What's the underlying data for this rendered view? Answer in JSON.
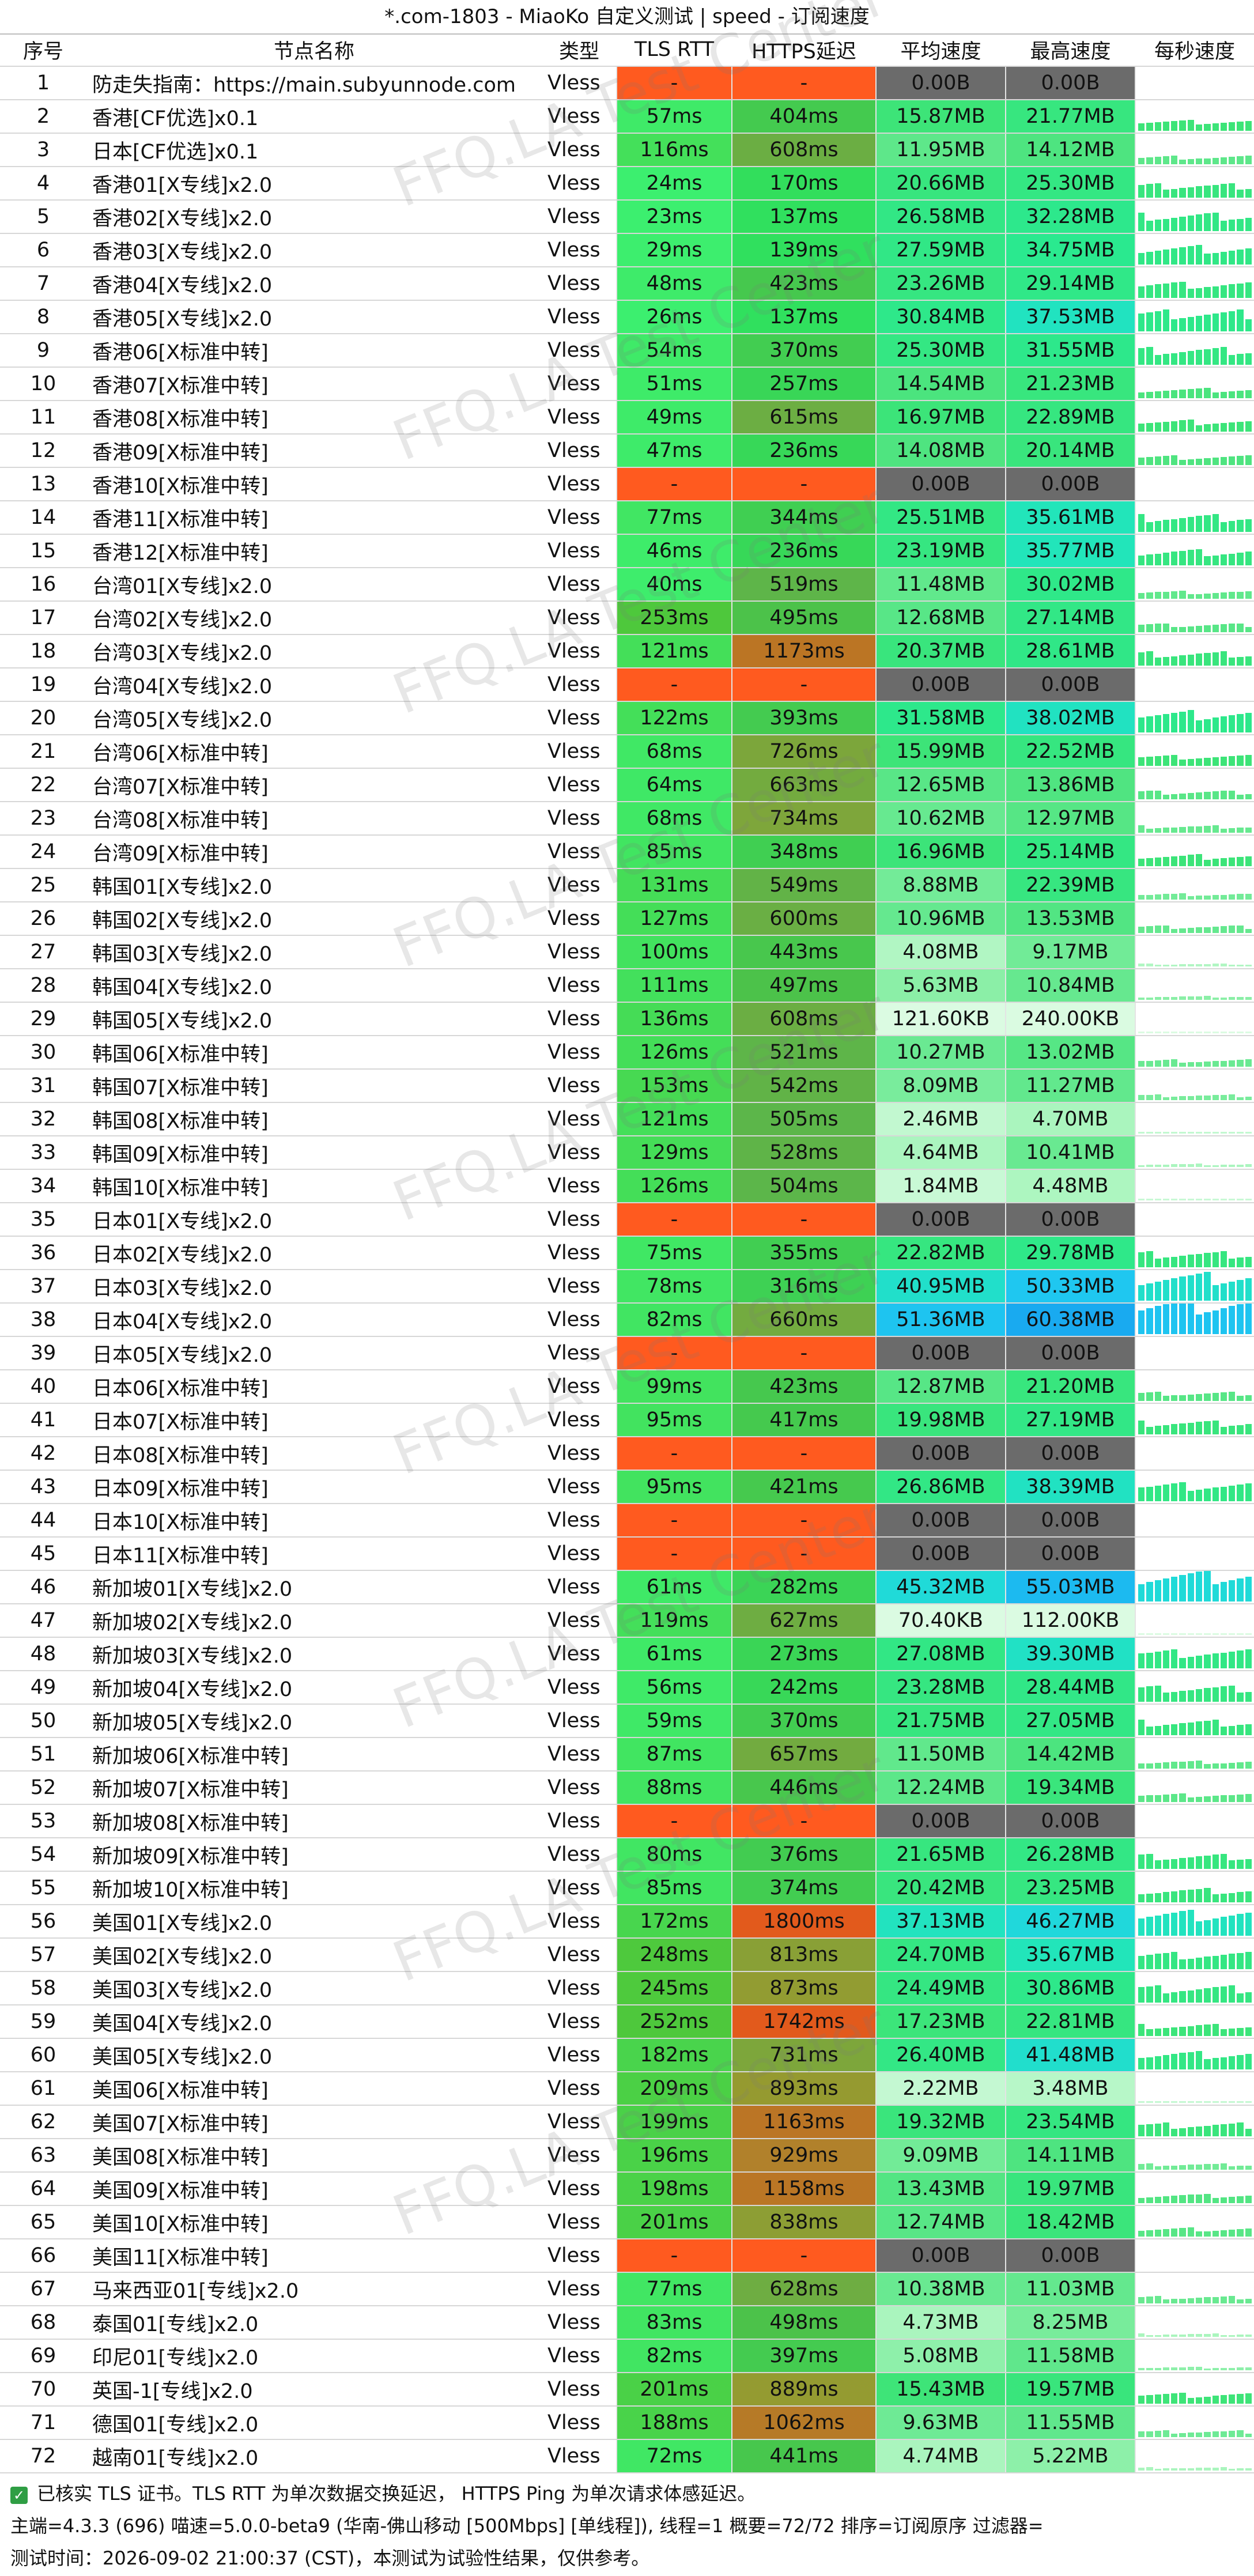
{
  "title": "*.com-1803 - MiaoKo 自定义测试 | speed - 订阅速度",
  "headers": [
    "序号",
    "节点名称",
    "类型",
    "TLS RTT",
    "HTTPS延迟",
    "平均速度",
    "最高速度",
    "每秒速度"
  ],
  "watermark": "FFQ.LA Test Center",
  "colors": {
    "fail_red": "#ff5a1f",
    "empty_gray": "#6b6b6b",
    "accent_green": "#38d66b"
  },
  "rows": [
    {
      "no": "1",
      "name": "防走失指南：https://main.subyunnode.com",
      "type": "Vless",
      "tls": "-",
      "https": "-",
      "avg": "0.00B",
      "max": "0.00B"
    },
    {
      "no": "2",
      "name": "香港[CF优选]x0.1",
      "type": "Vless",
      "tls": "57ms",
      "https": "404ms",
      "avg": "15.87MB",
      "max": "21.77MB"
    },
    {
      "no": "3",
      "name": "日本[CF优选]x0.1",
      "type": "Vless",
      "tls": "116ms",
      "https": "608ms",
      "avg": "11.95MB",
      "max": "14.12MB"
    },
    {
      "no": "4",
      "name": "香港01[X专线]x2.0",
      "type": "Vless",
      "tls": "24ms",
      "https": "170ms",
      "avg": "20.66MB",
      "max": "25.30MB"
    },
    {
      "no": "5",
      "name": "香港02[X专线]x2.0",
      "type": "Vless",
      "tls": "23ms",
      "https": "137ms",
      "avg": "26.58MB",
      "max": "32.28MB"
    },
    {
      "no": "6",
      "name": "香港03[X专线]x2.0",
      "type": "Vless",
      "tls": "29ms",
      "https": "139ms",
      "avg": "27.59MB",
      "max": "34.75MB"
    },
    {
      "no": "7",
      "name": "香港04[X专线]x2.0",
      "type": "Vless",
      "tls": "48ms",
      "https": "423ms",
      "avg": "23.26MB",
      "max": "29.14MB"
    },
    {
      "no": "8",
      "name": "香港05[X专线]x2.0",
      "type": "Vless",
      "tls": "26ms",
      "https": "137ms",
      "avg": "30.84MB",
      "max": "37.53MB"
    },
    {
      "no": "9",
      "name": "香港06[X标准中转]",
      "type": "Vless",
      "tls": "54ms",
      "https": "370ms",
      "avg": "25.30MB",
      "max": "31.55MB"
    },
    {
      "no": "10",
      "name": "香港07[X标准中转]",
      "type": "Vless",
      "tls": "51ms",
      "https": "257ms",
      "avg": "14.54MB",
      "max": "21.23MB"
    },
    {
      "no": "11",
      "name": "香港08[X标准中转]",
      "type": "Vless",
      "tls": "49ms",
      "https": "615ms",
      "avg": "16.97MB",
      "max": "22.89MB"
    },
    {
      "no": "12",
      "name": "香港09[X标准中转]",
      "type": "Vless",
      "tls": "47ms",
      "https": "236ms",
      "avg": "14.08MB",
      "max": "20.14MB"
    },
    {
      "no": "13",
      "name": "香港10[X标准中转]",
      "type": "Vless",
      "tls": "-",
      "https": "-",
      "avg": "0.00B",
      "max": "0.00B"
    },
    {
      "no": "14",
      "name": "香港11[X标准中转]",
      "type": "Vless",
      "tls": "77ms",
      "https": "344ms",
      "avg": "25.51MB",
      "max": "35.61MB"
    },
    {
      "no": "15",
      "name": "香港12[X标准中转]",
      "type": "Vless",
      "tls": "46ms",
      "https": "236ms",
      "avg": "23.19MB",
      "max": "35.77MB"
    },
    {
      "no": "16",
      "name": "台湾01[X专线]x2.0",
      "type": "Vless",
      "tls": "40ms",
      "https": "519ms",
      "avg": "11.48MB",
      "max": "30.02MB"
    },
    {
      "no": "17",
      "name": "台湾02[X专线]x2.0",
      "type": "Vless",
      "tls": "253ms",
      "https": "495ms",
      "avg": "12.68MB",
      "max": "27.14MB"
    },
    {
      "no": "18",
      "name": "台湾03[X专线]x2.0",
      "type": "Vless",
      "tls": "121ms",
      "https": "1173ms",
      "avg": "20.37MB",
      "max": "28.61MB"
    },
    {
      "no": "19",
      "name": "台湾04[X专线]x2.0",
      "type": "Vless",
      "tls": "-",
      "https": "-",
      "avg": "0.00B",
      "max": "0.00B"
    },
    {
      "no": "20",
      "name": "台湾05[X专线]x2.0",
      "type": "Vless",
      "tls": "122ms",
      "https": "393ms",
      "avg": "31.58MB",
      "max": "38.02MB"
    },
    {
      "no": "21",
      "name": "台湾06[X标准中转]",
      "type": "Vless",
      "tls": "68ms",
      "https": "726ms",
      "avg": "15.99MB",
      "max": "22.52MB"
    },
    {
      "no": "22",
      "name": "台湾07[X标准中转]",
      "type": "Vless",
      "tls": "64ms",
      "https": "663ms",
      "avg": "12.65MB",
      "max": "13.86MB"
    },
    {
      "no": "23",
      "name": "台湾08[X标准中转]",
      "type": "Vless",
      "tls": "68ms",
      "https": "734ms",
      "avg": "10.62MB",
      "max": "12.97MB"
    },
    {
      "no": "24",
      "name": "台湾09[X标准中转]",
      "type": "Vless",
      "tls": "85ms",
      "https": "348ms",
      "avg": "16.96MB",
      "max": "25.14MB"
    },
    {
      "no": "25",
      "name": "韩国01[X专线]x2.0",
      "type": "Vless",
      "tls": "131ms",
      "https": "549ms",
      "avg": "8.88MB",
      "max": "22.39MB"
    },
    {
      "no": "26",
      "name": "韩国02[X专线]x2.0",
      "type": "Vless",
      "tls": "127ms",
      "https": "600ms",
      "avg": "10.96MB",
      "max": "13.53MB"
    },
    {
      "no": "27",
      "name": "韩国03[X专线]x2.0",
      "type": "Vless",
      "tls": "100ms",
      "https": "443ms",
      "avg": "4.08MB",
      "max": "9.17MB"
    },
    {
      "no": "28",
      "name": "韩国04[X专线]x2.0",
      "type": "Vless",
      "tls": "111ms",
      "https": "497ms",
      "avg": "5.63MB",
      "max": "10.84MB"
    },
    {
      "no": "29",
      "name": "韩国05[X专线]x2.0",
      "type": "Vless",
      "tls": "136ms",
      "https": "608ms",
      "avg": "121.60KB",
      "max": "240.00KB"
    },
    {
      "no": "30",
      "name": "韩国06[X标准中转]",
      "type": "Vless",
      "tls": "126ms",
      "https": "521ms",
      "avg": "10.27MB",
      "max": "13.02MB"
    },
    {
      "no": "31",
      "name": "韩国07[X标准中转]",
      "type": "Vless",
      "tls": "153ms",
      "https": "542ms",
      "avg": "8.09MB",
      "max": "11.27MB"
    },
    {
      "no": "32",
      "name": "韩国08[X标准中转]",
      "type": "Vless",
      "tls": "121ms",
      "https": "505ms",
      "avg": "2.46MB",
      "max": "4.70MB"
    },
    {
      "no": "33",
      "name": "韩国09[X标准中转]",
      "type": "Vless",
      "tls": "129ms",
      "https": "528ms",
      "avg": "4.64MB",
      "max": "10.41MB"
    },
    {
      "no": "34",
      "name": "韩国10[X标准中转]",
      "type": "Vless",
      "tls": "126ms",
      "https": "504ms",
      "avg": "1.84MB",
      "max": "4.48MB"
    },
    {
      "no": "35",
      "name": "日本01[X专线]x2.0",
      "type": "Vless",
      "tls": "-",
      "https": "-",
      "avg": "0.00B",
      "max": "0.00B"
    },
    {
      "no": "36",
      "name": "日本02[X专线]x2.0",
      "type": "Vless",
      "tls": "75ms",
      "https": "355ms",
      "avg": "22.82MB",
      "max": "29.78MB"
    },
    {
      "no": "37",
      "name": "日本03[X专线]x2.0",
      "type": "Vless",
      "tls": "78ms",
      "https": "316ms",
      "avg": "40.95MB",
      "max": "50.33MB"
    },
    {
      "no": "38",
      "name": "日本04[X专线]x2.0",
      "type": "Vless",
      "tls": "82ms",
      "https": "660ms",
      "avg": "51.36MB",
      "max": "60.38MB"
    },
    {
      "no": "39",
      "name": "日本05[X专线]x2.0",
      "type": "Vless",
      "tls": "-",
      "https": "-",
      "avg": "0.00B",
      "max": "0.00B"
    },
    {
      "no": "40",
      "name": "日本06[X标准中转]",
      "type": "Vless",
      "tls": "99ms",
      "https": "423ms",
      "avg": "12.87MB",
      "max": "21.20MB"
    },
    {
      "no": "41",
      "name": "日本07[X标准中转]",
      "type": "Vless",
      "tls": "95ms",
      "https": "417ms",
      "avg": "19.98MB",
      "max": "27.19MB"
    },
    {
      "no": "42",
      "name": "日本08[X标准中转]",
      "type": "Vless",
      "tls": "-",
      "https": "-",
      "avg": "0.00B",
      "max": "0.00B"
    },
    {
      "no": "43",
      "name": "日本09[X标准中转]",
      "type": "Vless",
      "tls": "95ms",
      "https": "421ms",
      "avg": "26.86MB",
      "max": "38.39MB"
    },
    {
      "no": "44",
      "name": "日本10[X标准中转]",
      "type": "Vless",
      "tls": "-",
      "https": "-",
      "avg": "0.00B",
      "max": "0.00B"
    },
    {
      "no": "45",
      "name": "日本11[X标准中转]",
      "type": "Vless",
      "tls": "-",
      "https": "-",
      "avg": "0.00B",
      "max": "0.00B"
    },
    {
      "no": "46",
      "name": "新加坡01[X专线]x2.0",
      "type": "Vless",
      "tls": "61ms",
      "https": "282ms",
      "avg": "45.32MB",
      "max": "55.03MB"
    },
    {
      "no": "47",
      "name": "新加坡02[X专线]x2.0",
      "type": "Vless",
      "tls": "119ms",
      "https": "627ms",
      "avg": "70.40KB",
      "max": "112.00KB"
    },
    {
      "no": "48",
      "name": "新加坡03[X专线]x2.0",
      "type": "Vless",
      "tls": "61ms",
      "https": "273ms",
      "avg": "27.08MB",
      "max": "39.30MB"
    },
    {
      "no": "49",
      "name": "新加坡04[X专线]x2.0",
      "type": "Vless",
      "tls": "56ms",
      "https": "242ms",
      "avg": "23.28MB",
      "max": "28.44MB"
    },
    {
      "no": "50",
      "name": "新加坡05[X专线]x2.0",
      "type": "Vless",
      "tls": "59ms",
      "https": "370ms",
      "avg": "21.75MB",
      "max": "27.05MB"
    },
    {
      "no": "51",
      "name": "新加坡06[X标准中转]",
      "type": "Vless",
      "tls": "87ms",
      "https": "657ms",
      "avg": "11.50MB",
      "max": "14.42MB"
    },
    {
      "no": "52",
      "name": "新加坡07[X标准中转]",
      "type": "Vless",
      "tls": "88ms",
      "https": "446ms",
      "avg": "12.24MB",
      "max": "19.34MB"
    },
    {
      "no": "53",
      "name": "新加坡08[X标准中转]",
      "type": "Vless",
      "tls": "-",
      "https": "-",
      "avg": "0.00B",
      "max": "0.00B"
    },
    {
      "no": "54",
      "name": "新加坡09[X标准中转]",
      "type": "Vless",
      "tls": "80ms",
      "https": "376ms",
      "avg": "21.65MB",
      "max": "26.28MB"
    },
    {
      "no": "55",
      "name": "新加坡10[X标准中转]",
      "type": "Vless",
      "tls": "85ms",
      "https": "374ms",
      "avg": "20.42MB",
      "max": "23.25MB"
    },
    {
      "no": "56",
      "name": "美国01[X专线]x2.0",
      "type": "Vless",
      "tls": "172ms",
      "https": "1800ms",
      "avg": "37.13MB",
      "max": "46.27MB"
    },
    {
      "no": "57",
      "name": "美国02[X专线]x2.0",
      "type": "Vless",
      "tls": "248ms",
      "https": "813ms",
      "avg": "24.70MB",
      "max": "35.67MB"
    },
    {
      "no": "58",
      "name": "美国03[X专线]x2.0",
      "type": "Vless",
      "tls": "245ms",
      "https": "873ms",
      "avg": "24.49MB",
      "max": "30.86MB"
    },
    {
      "no": "59",
      "name": "美国04[X专线]x2.0",
      "type": "Vless",
      "tls": "252ms",
      "https": "1742ms",
      "avg": "17.23MB",
      "max": "22.81MB"
    },
    {
      "no": "60",
      "name": "美国05[X专线]x2.0",
      "type": "Vless",
      "tls": "182ms",
      "https": "731ms",
      "avg": "26.40MB",
      "max": "41.48MB"
    },
    {
      "no": "61",
      "name": "美国06[X标准中转]",
      "type": "Vless",
      "tls": "209ms",
      "https": "893ms",
      "avg": "2.22MB",
      "max": "3.48MB"
    },
    {
      "no": "62",
      "name": "美国07[X标准中转]",
      "type": "Vless",
      "tls": "199ms",
      "https": "1163ms",
      "avg": "19.32MB",
      "max": "23.54MB"
    },
    {
      "no": "63",
      "name": "美国08[X标准中转]",
      "type": "Vless",
      "tls": "196ms",
      "https": "929ms",
      "avg": "9.09MB",
      "max": "14.11MB"
    },
    {
      "no": "64",
      "name": "美国09[X标准中转]",
      "type": "Vless",
      "tls": "198ms",
      "https": "1158ms",
      "avg": "13.43MB",
      "max": "19.97MB"
    },
    {
      "no": "65",
      "name": "美国10[X标准中转]",
      "type": "Vless",
      "tls": "201ms",
      "https": "838ms",
      "avg": "12.74MB",
      "max": "18.42MB"
    },
    {
      "no": "66",
      "name": "美国11[X标准中转]",
      "type": "Vless",
      "tls": "-",
      "https": "-",
      "avg": "0.00B",
      "max": "0.00B"
    },
    {
      "no": "67",
      "name": "马来西亚01[专线]x2.0",
      "type": "Vless",
      "tls": "77ms",
      "https": "628ms",
      "avg": "10.38MB",
      "max": "11.03MB"
    },
    {
      "no": "68",
      "name": "泰国01[专线]x2.0",
      "type": "Vless",
      "tls": "83ms",
      "https": "498ms",
      "avg": "4.73MB",
      "max": "8.25MB"
    },
    {
      "no": "69",
      "name": "印尼01[专线]x2.0",
      "type": "Vless",
      "tls": "82ms",
      "https": "397ms",
      "avg": "5.08MB",
      "max": "11.58MB"
    },
    {
      "no": "70",
      "name": "英国-1[专线]x2.0",
      "type": "Vless",
      "tls": "201ms",
      "https": "889ms",
      "avg": "15.43MB",
      "max": "19.57MB"
    },
    {
      "no": "71",
      "name": "德国01[专线]x2.0",
      "type": "Vless",
      "tls": "188ms",
      "https": "1062ms",
      "avg": "9.63MB",
      "max": "11.55MB"
    },
    {
      "no": "72",
      "name": "越南01[专线]x2.0",
      "type": "Vless",
      "tls": "72ms",
      "https": "441ms",
      "avg": "4.74MB",
      "max": "5.22MB"
    }
  ],
  "footer": {
    "line1": "已核实 TLS 证书。TLS RTT 为单次数据交换延迟， HTTPS Ping 为单次请求体感延迟。",
    "line2": "主端=4.3.3 (696) 喵速=5.0.0-beta9 (华南-佛山移动 [500Mbps] [单线程]), 线程=1 概要=72/72 排序=订阅原序 过滤器=",
    "line3": "测试时间：2026-09-02 21:00:37 (CST)，本测试为试验性结果，仅供参考。"
  }
}
